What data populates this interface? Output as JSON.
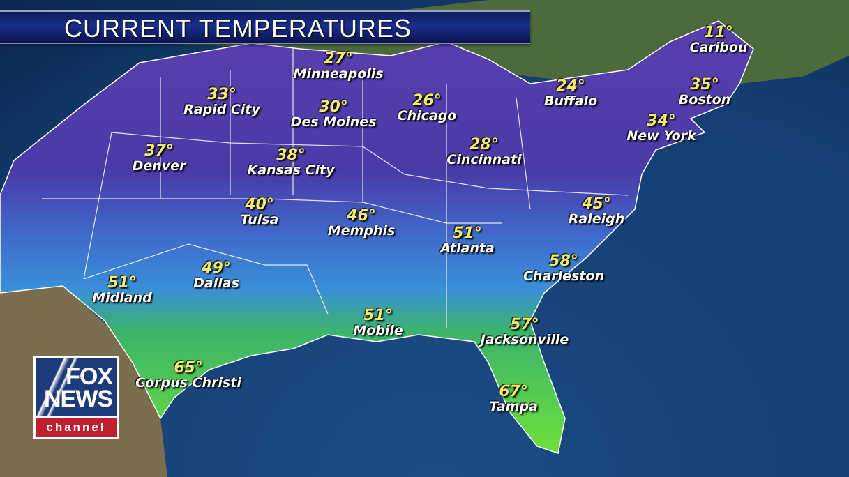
{
  "header": {
    "title": "CURRENT TEMPERATURES"
  },
  "logo": {
    "line1": "FOX",
    "line2": "NEWS",
    "line3": "channel",
    "colors": {
      "blue": "#1d3a7a",
      "red": "#c01f2f"
    }
  },
  "colors": {
    "temp_text": "#f2ec6a",
    "city_text": "#ffffff",
    "cold": "#4a3aa8",
    "mild": "#3a7fd8",
    "warm": "#3fc83a"
  },
  "cities": [
    {
      "name": "Caribou",
      "temp": "11°"
    },
    {
      "name": "Minneapolis",
      "temp": "27°"
    },
    {
      "name": "Rapid City",
      "temp": "33°"
    },
    {
      "name": "Des Moines",
      "temp": "30°"
    },
    {
      "name": "Chicago",
      "temp": "26°"
    },
    {
      "name": "Buffalo",
      "temp": "24°"
    },
    {
      "name": "Boston",
      "temp": "35°"
    },
    {
      "name": "New York",
      "temp": "34°"
    },
    {
      "name": "Denver",
      "temp": "37°"
    },
    {
      "name": "Kansas City",
      "temp": "38°"
    },
    {
      "name": "Cincinnati",
      "temp": "28°"
    },
    {
      "name": "Tulsa",
      "temp": "40°"
    },
    {
      "name": "Memphis",
      "temp": "46°"
    },
    {
      "name": "Atlanta",
      "temp": "51°"
    },
    {
      "name": "Raleigh",
      "temp": "45°"
    },
    {
      "name": "Charleston",
      "temp": "58°"
    },
    {
      "name": "Dallas",
      "temp": "49°"
    },
    {
      "name": "Midland",
      "temp": "51°"
    },
    {
      "name": "Mobile",
      "temp": "51°"
    },
    {
      "name": "Jacksonville",
      "temp": "57°"
    },
    {
      "name": "Corpus Christi",
      "temp": "65°"
    },
    {
      "name": "Tampa",
      "temp": "67°"
    }
  ]
}
